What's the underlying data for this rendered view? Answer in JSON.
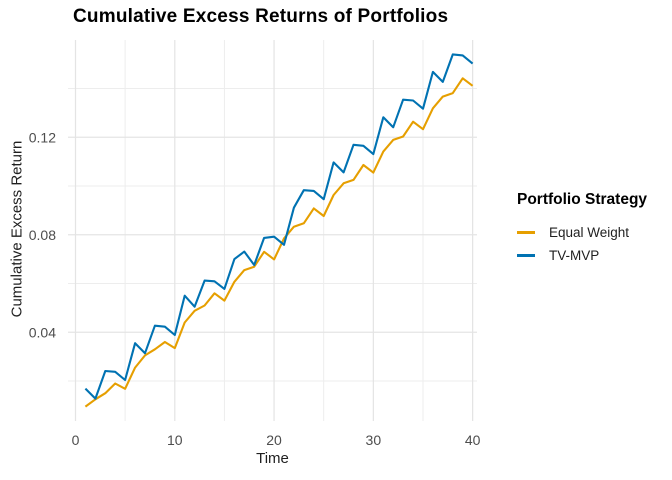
{
  "chart_data": {
    "type": "line",
    "title": "Cumulative Excess Returns of Portfolios",
    "xlabel": "Time",
    "ylabel": "Cumulative Excess Return",
    "grid": true,
    "legend_position": "right",
    "x_domain": [
      -0.755,
      40.44
    ],
    "y_domain": [
      0.0036,
      0.1599
    ],
    "x_ticks": {
      "major": [
        0,
        10,
        20,
        30,
        40
      ],
      "labels": [
        "0",
        "10",
        "20",
        "30",
        "40"
      ],
      "minor": [
        5,
        15,
        25,
        35
      ]
    },
    "y_ticks": {
      "major": [
        0.04,
        0.08,
        0.12
      ],
      "labels": [
        "0.04",
        "0.08",
        "0.12"
      ],
      "minor": [
        0.02,
        0.06,
        0.1,
        0.14
      ]
    },
    "x": [
      1,
      2,
      3,
      4,
      5,
      6,
      7,
      8,
      9,
      10,
      11,
      12,
      13,
      14,
      15,
      16,
      17,
      18,
      19,
      20,
      21,
      22,
      23,
      24,
      25,
      26,
      27,
      28,
      29,
      30,
      31,
      32,
      33,
      34,
      35,
      36,
      37,
      38,
      39,
      40
    ],
    "series": [
      {
        "name": "Equal Weight",
        "color": "#E69F00",
        "values": [
          0.0095,
          0.0125,
          0.015,
          0.019,
          0.0168,
          0.0255,
          0.0305,
          0.033,
          0.036,
          0.0335,
          0.044,
          0.0488,
          0.051,
          0.056,
          0.053,
          0.0607,
          0.0655,
          0.0669,
          0.073,
          0.0699,
          0.0785,
          0.0833,
          0.0847,
          0.0908,
          0.0877,
          0.0963,
          0.1011,
          0.1025,
          0.1086,
          0.1055,
          0.1141,
          0.1189,
          0.1203,
          0.1264,
          0.1233,
          0.1319,
          0.1367,
          0.1381,
          0.1442,
          0.1411
        ]
      },
      {
        "name": "TV-MVP",
        "color": "#0072B2",
        "values": [
          0.0169,
          0.0128,
          0.0241,
          0.0238,
          0.0204,
          0.0355,
          0.0314,
          0.0427,
          0.0423,
          0.0389,
          0.055,
          0.0505,
          0.0612,
          0.0609,
          0.0578,
          0.07,
          0.0731,
          0.0676,
          0.0787,
          0.0792,
          0.0759,
          0.0911,
          0.0983,
          0.098,
          0.0946,
          0.1097,
          0.1056,
          0.1169,
          0.1165,
          0.1131,
          0.1282,
          0.1241,
          0.1354,
          0.1351,
          0.1317,
          0.1468,
          0.1427,
          0.154,
          0.1536,
          0.1502
        ]
      }
    ]
  },
  "legend": {
    "title": "Portfolio Strategy",
    "items": [
      {
        "label": "Equal Weight",
        "color": "#E69F00"
      },
      {
        "label": "TV-MVP",
        "color": "#0072B2"
      }
    ]
  },
  "colors": {
    "background": "#FFFFFF",
    "grid_major": "#E4E4E4",
    "grid_minor": "#EDEDED",
    "tick_text": "#4D4D4D",
    "axis_title_text": "#1F1F1F",
    "title_text": "#000000"
  }
}
